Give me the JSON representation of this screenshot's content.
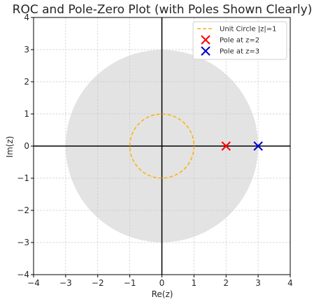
{
  "chart_data": {
    "type": "scatter",
    "title": "ROC and Pole-Zero Plot (with Poles Shown Clearly)",
    "xlabel": "Re(z)",
    "ylabel": "Im(z)",
    "xlim": [
      -4,
      4
    ],
    "ylim": [
      -4,
      4
    ],
    "xticks": [
      -4,
      -3,
      -2,
      -1,
      0,
      1,
      2,
      3,
      4
    ],
    "yticks": [
      -4,
      -3,
      -2,
      -1,
      0,
      1,
      2,
      3,
      4
    ],
    "xtick_labels": [
      "−4",
      "−3",
      "−2",
      "−1",
      "0",
      "1",
      "2",
      "3",
      "4"
    ],
    "ytick_labels": [
      "−4",
      "−3",
      "−2",
      "−1",
      "0",
      "1",
      "2",
      "3",
      "4"
    ],
    "grid": true,
    "legend_position": "top-right",
    "roc_region": {
      "shape": "disk",
      "center": [
        0,
        0
      ],
      "radius": 3,
      "color": "#e3e3e3"
    },
    "series": [
      {
        "name": "Unit Circle |z|=1",
        "kind": "circle",
        "center": [
          0,
          0
        ],
        "radius": 1,
        "color": "#ffb000",
        "dashed": true
      },
      {
        "name": "Pole at z=2",
        "kind": "marker",
        "marker": "x",
        "x": 2,
        "y": 0,
        "color": "#ff0000"
      },
      {
        "name": "Pole at z=3",
        "kind": "marker",
        "marker": "x",
        "x": 3,
        "y": 0,
        "color": "#0000cc"
      }
    ]
  }
}
